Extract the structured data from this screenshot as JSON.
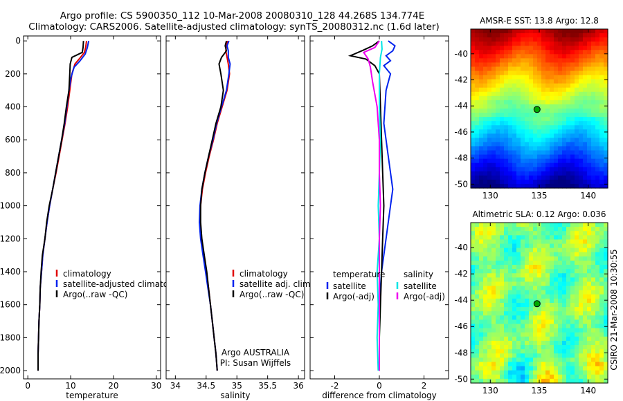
{
  "header": {
    "line1": "Argo profile: CS 5900350_112 10-Mar-2008 20080310_128 44.268S 134.774E",
    "line2": "Climatology: CARS2006. Satellite-adjusted climatology: synTS_20080312.nc (1.6d later)"
  },
  "side_credit": "CSIRO 21-Mar-2008 10:30:55",
  "colors": {
    "climatology": "#e00000",
    "satellite": "#0022ee",
    "argo": "#000000",
    "diff_satellite": "#00e5e5",
    "diff_argo": "#ee00ee",
    "float_marker": "#00aa00"
  },
  "chart_data": [
    {
      "type": "line",
      "xlabel": "temperature",
      "ylabel": "",
      "xlim": [
        -1,
        31
      ],
      "ylim": [
        2050,
        -30
      ],
      "y_inverted": true,
      "xticks": [
        0,
        10,
        20,
        30
      ],
      "yticks": [
        0,
        200,
        400,
        600,
        800,
        1000,
        1200,
        1400,
        1600,
        1800,
        2000
      ],
      "legend": [
        "climatology",
        "satellite-adjusted climatology",
        "Argo(..raw -QC)"
      ],
      "series": [
        {
          "name": "climatology",
          "color": "red",
          "points": [
            [
              13.7,
              0
            ],
            [
              13.5,
              40
            ],
            [
              13.2,
              70
            ],
            [
              12.3,
              100
            ],
            [
              11.0,
              140
            ],
            [
              10.3,
              200
            ],
            [
              9.8,
              300
            ],
            [
              9.3,
              400
            ],
            [
              8.7,
              500
            ],
            [
              8.0,
              600
            ],
            [
              7.3,
              700
            ],
            [
              6.6,
              800
            ],
            [
              5.8,
              900
            ],
            [
              5.1,
              1000
            ],
            [
              4.5,
              1100
            ],
            [
              4.0,
              1200
            ],
            [
              3.5,
              1300
            ],
            [
              3.2,
              1400
            ],
            [
              2.9,
              1500
            ],
            [
              2.8,
              1600
            ],
            [
              2.6,
              1700
            ],
            [
              2.5,
              1800
            ],
            [
              2.4,
              1900
            ],
            [
              2.4,
              2000
            ]
          ]
        },
        {
          "name": "satellite-adjusted climatology",
          "color": "blue",
          "points": [
            [
              14.2,
              0
            ],
            [
              13.9,
              40
            ],
            [
              13.4,
              80
            ],
            [
              12.2,
              120
            ],
            [
              10.8,
              160
            ],
            [
              10.1,
              220
            ],
            [
              9.6,
              300
            ],
            [
              9.1,
              400
            ],
            [
              8.6,
              500
            ],
            [
              7.9,
              600
            ],
            [
              7.2,
              700
            ],
            [
              6.5,
              800
            ],
            [
              5.8,
              900
            ],
            [
              5.1,
              1000
            ],
            [
              4.5,
              1100
            ],
            [
              4.0,
              1200
            ],
            [
              3.5,
              1300
            ],
            [
              3.2,
              1400
            ],
            [
              2.9,
              1500
            ],
            [
              2.8,
              1600
            ],
            [
              2.6,
              1700
            ],
            [
              2.5,
              1800
            ],
            [
              2.4,
              1900
            ],
            [
              2.4,
              2000
            ]
          ]
        },
        {
          "name": "Argo(..raw -QC)",
          "color": "black",
          "points": [
            [
              13.0,
              0
            ],
            [
              12.9,
              40
            ],
            [
              12.7,
              70
            ],
            [
              10.3,
              100
            ],
            [
              9.9,
              140
            ],
            [
              9.8,
              200
            ],
            [
              9.6,
              300
            ],
            [
              9.0,
              400
            ],
            [
              8.5,
              500
            ],
            [
              7.9,
              600
            ],
            [
              7.2,
              700
            ],
            [
              6.5,
              800
            ],
            [
              5.8,
              900
            ],
            [
              5.0,
              1000
            ],
            [
              4.4,
              1100
            ],
            [
              4.0,
              1200
            ],
            [
              3.4,
              1300
            ],
            [
              3.1,
              1400
            ],
            [
              2.9,
              1500
            ],
            [
              2.8,
              1600
            ],
            [
              2.6,
              1700
            ],
            [
              2.5,
              1800
            ],
            [
              2.4,
              1900
            ],
            [
              2.4,
              2000
            ]
          ]
        }
      ]
    },
    {
      "type": "line",
      "xlabel": "salinity",
      "ylabel": "",
      "xlim": [
        33.85,
        36.1
      ],
      "ylim": [
        2050,
        -30
      ],
      "y_inverted": true,
      "xticks": [
        34,
        34.5,
        35,
        35.5,
        36
      ],
      "legend": [
        "climatology",
        "satellite adj. clim.",
        "Argo(..raw -QC)"
      ],
      "annotation": [
        "Argo AUSTRALIA",
        "PI: Susan Wijffels"
      ],
      "series": [
        {
          "name": "climatology",
          "color": "red",
          "points": [
            [
              34.85,
              0
            ],
            [
              34.83,
              30
            ],
            [
              34.82,
              60
            ],
            [
              34.84,
              100
            ],
            [
              34.86,
              140
            ],
            [
              34.88,
              200
            ],
            [
              34.84,
              300
            ],
            [
              34.76,
              400
            ],
            [
              34.68,
              500
            ],
            [
              34.62,
              600
            ],
            [
              34.55,
              700
            ],
            [
              34.49,
              800
            ],
            [
              34.44,
              900
            ],
            [
              34.41,
              1000
            ],
            [
              34.4,
              1100
            ],
            [
              34.42,
              1200
            ],
            [
              34.46,
              1300
            ],
            [
              34.5,
              1400
            ],
            [
              34.54,
              1500
            ],
            [
              34.57,
              1600
            ],
            [
              34.6,
              1700
            ],
            [
              34.63,
              1800
            ],
            [
              34.66,
              1900
            ],
            [
              34.68,
              2000
            ]
          ]
        },
        {
          "name": "satellite adj. clim.",
          "color": "blue",
          "points": [
            [
              34.87,
              0
            ],
            [
              34.84,
              30
            ],
            [
              34.86,
              60
            ],
            [
              34.86,
              100
            ],
            [
              34.89,
              140
            ],
            [
              34.87,
              200
            ],
            [
              34.83,
              300
            ],
            [
              34.75,
              400
            ],
            [
              34.67,
              500
            ],
            [
              34.61,
              600
            ],
            [
              34.54,
              700
            ],
            [
              34.48,
              800
            ],
            [
              34.43,
              900
            ],
            [
              34.4,
              1000
            ],
            [
              34.39,
              1100
            ],
            [
              34.41,
              1200
            ],
            [
              34.45,
              1300
            ],
            [
              34.49,
              1400
            ],
            [
              34.53,
              1500
            ],
            [
              34.57,
              1600
            ],
            [
              34.6,
              1700
            ],
            [
              34.63,
              1800
            ],
            [
              34.66,
              1900
            ],
            [
              34.68,
              2000
            ]
          ]
        },
        {
          "name": "Argo(..raw -QC)",
          "color": "black",
          "points": [
            [
              34.83,
              0
            ],
            [
              34.81,
              30
            ],
            [
              34.83,
              60
            ],
            [
              34.75,
              100
            ],
            [
              34.71,
              140
            ],
            [
              34.74,
              200
            ],
            [
              34.78,
              300
            ],
            [
              34.74,
              400
            ],
            [
              34.66,
              500
            ],
            [
              34.6,
              600
            ],
            [
              34.54,
              700
            ],
            [
              34.48,
              800
            ],
            [
              34.43,
              900
            ],
            [
              34.41,
              1000
            ],
            [
              34.41,
              1100
            ],
            [
              34.43,
              1200
            ],
            [
              34.47,
              1300
            ],
            [
              34.51,
              1400
            ],
            [
              34.54,
              1500
            ],
            [
              34.57,
              1600
            ],
            [
              34.6,
              1700
            ],
            [
              34.63,
              1800
            ],
            [
              34.66,
              1900
            ],
            [
              34.68,
              2000
            ]
          ]
        }
      ]
    },
    {
      "type": "line",
      "xlabel": "difference from climatology",
      "ylabel": "",
      "xlim": [
        -3.1,
        3.1
      ],
      "ylim": [
        2050,
        -30
      ],
      "y_inverted": true,
      "xticks": [
        -2,
        0,
        2
      ],
      "legend_temperature": {
        "heading": "temperature",
        "items": [
          "satellite",
          "Argo(-adj)"
        ]
      },
      "legend_salinity": {
        "heading": "salinity",
        "items": [
          "satellite",
          "Argo(-adj)"
        ]
      },
      "series": [
        {
          "name": "temperature satellite",
          "color": "blue",
          "points": [
            [
              0.4,
              0
            ],
            [
              0.7,
              30
            ],
            [
              0.6,
              60
            ],
            [
              0.3,
              90
            ],
            [
              0.5,
              120
            ],
            [
              0.2,
              150
            ],
            [
              0.5,
              200
            ],
            [
              0.3,
              300
            ],
            [
              0.2,
              500
            ],
            [
              0.4,
              700
            ],
            [
              0.6,
              900
            ],
            [
              0.5,
              1000
            ],
            [
              0.3,
              1200
            ],
            [
              0.1,
              1400
            ],
            [
              0.0,
              1600
            ],
            [
              0.0,
              2000
            ]
          ]
        },
        {
          "name": "temperature Argo(-adj)",
          "color": "black",
          "points": [
            [
              0.0,
              0
            ],
            [
              -0.3,
              30
            ],
            [
              -0.7,
              55
            ],
            [
              -1.3,
              90
            ],
            [
              -0.6,
              110
            ],
            [
              -0.2,
              150
            ],
            [
              0.0,
              200
            ],
            [
              0.05,
              400
            ],
            [
              0.1,
              600
            ],
            [
              0.15,
              800
            ],
            [
              0.2,
              1000
            ],
            [
              0.15,
              1200
            ],
            [
              0.1,
              1400
            ],
            [
              0.05,
              1600
            ],
            [
              0.0,
              1800
            ],
            [
              0.0,
              2000
            ]
          ]
        },
        {
          "name": "salinity satellite",
          "color": "cyan",
          "points": [
            [
              0.1,
              0
            ],
            [
              0.12,
              50
            ],
            [
              0.05,
              100
            ],
            [
              0.0,
              200
            ],
            [
              0.0,
              400
            ],
            [
              0.05,
              600
            ],
            [
              0.0,
              800
            ],
            [
              -0.05,
              1000
            ],
            [
              0.0,
              1200
            ],
            [
              -0.1,
              1400
            ],
            [
              -0.05,
              1600
            ],
            [
              -0.1,
              1800
            ],
            [
              -0.05,
              2000
            ]
          ]
        },
        {
          "name": "salinity Argo(-adj)",
          "color": "magenta",
          "points": [
            [
              0.0,
              0
            ],
            [
              -0.2,
              40
            ],
            [
              -0.7,
              70
            ],
            [
              -0.5,
              110
            ],
            [
              -0.4,
              160
            ],
            [
              -0.3,
              250
            ],
            [
              -0.1,
              400
            ],
            [
              0.0,
              600
            ],
            [
              0.0,
              800
            ],
            [
              0.05,
              1000
            ],
            [
              0.0,
              1200
            ],
            [
              0.0,
              1600
            ],
            [
              0.0,
              2000
            ]
          ]
        }
      ]
    },
    {
      "type": "heatmap",
      "title": "AMSR-E SST: 13.8 Argo: 12.8",
      "xlim": [
        128,
        142
      ],
      "ylim": [
        -50.3,
        -38.1
      ],
      "xticks": [
        130,
        135,
        140
      ],
      "yticks": [
        -40,
        -42,
        -44,
        -46,
        -48,
        -50
      ],
      "colormap": "jet (warm north, cold south)",
      "marker": {
        "lon": 134.774,
        "lat": -44.268
      }
    },
    {
      "type": "heatmap",
      "title": "Altimetric SLA: 0.12 Argo: 0.036",
      "xlim": [
        128,
        142
      ],
      "ylim": [
        -50.3,
        -38.1
      ],
      "xticks": [
        130,
        135,
        140
      ],
      "yticks": [
        -40,
        -42,
        -44,
        -46,
        -48,
        -50
      ],
      "colormap": "jet (mostly green-yellow)",
      "marker": {
        "lon": 134.774,
        "lat": -44.268
      }
    }
  ]
}
